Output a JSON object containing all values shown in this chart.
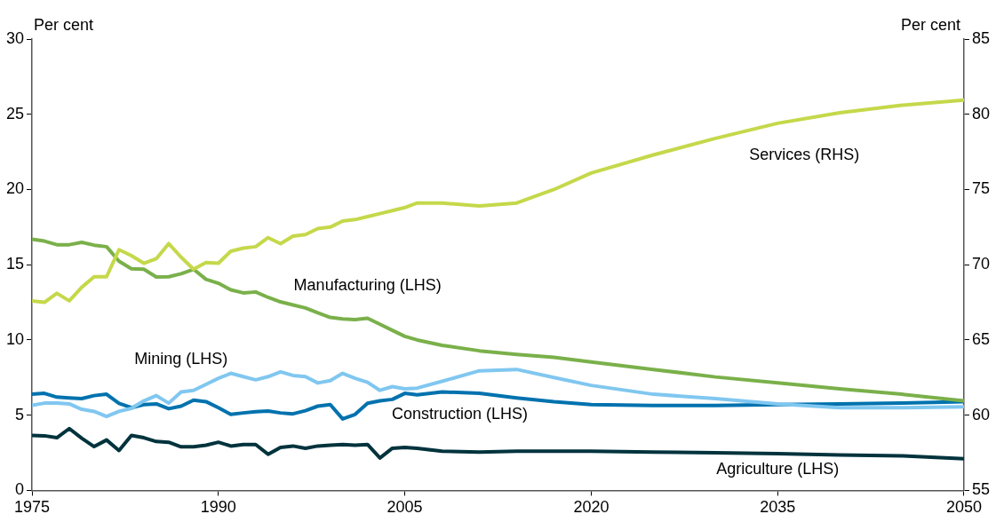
{
  "chart_data": {
    "type": "line",
    "ylabel": "Per cent",
    "y2label": "Per cent",
    "x": [
      1975,
      1976,
      1977,
      1978,
      1979,
      1980,
      1981,
      1982,
      1983,
      1984,
      1985,
      1986,
      1987,
      1988,
      1989,
      1990,
      1991,
      1992,
      1993,
      1994,
      1995,
      1996,
      1997,
      1998,
      1999,
      2000,
      2001,
      2002,
      2003,
      2004,
      2005,
      2006,
      2008,
      2011,
      2014,
      2017,
      2020,
      2025,
      2030,
      2035,
      2040,
      2045,
      2050
    ],
    "xlim": [
      1975,
      2050
    ],
    "xticks": [
      1975,
      1990,
      2005,
      2020,
      2035,
      2050
    ],
    "ylim": [
      0,
      30
    ],
    "yticks": [
      0,
      5,
      10,
      15,
      20,
      25,
      30
    ],
    "y2lim": [
      55,
      85
    ],
    "y2ticks": [
      55,
      60,
      65,
      70,
      75,
      80,
      85
    ],
    "grid": false,
    "legend": false,
    "line_style": "solid",
    "marker": "none",
    "series": [
      {
        "name": "Services (RHS)",
        "axis": "y2",
        "color": "#c5d84a",
        "values": [
          67.6,
          67.5,
          68.1,
          67.6,
          68.5,
          69.2,
          69.2,
          71.0,
          70.6,
          70.1,
          70.4,
          71.4,
          70.5,
          69.7,
          70.15,
          70.1,
          70.9,
          71.1,
          71.2,
          71.8,
          71.4,
          71.9,
          72.0,
          72.4,
          72.5,
          72.9,
          73.0,
          73.2,
          73.4,
          73.6,
          73.8,
          74.1,
          74.1,
          73.9,
          74.1,
          75.0,
          76.1,
          77.3,
          78.4,
          79.4,
          80.1,
          80.6,
          80.95
        ]
      },
      {
        "name": "Manufacturing (LHS)",
        "color": "#7ab04a",
        "values": [
          16.7,
          16.57,
          16.33,
          16.33,
          16.49,
          16.3,
          16.2,
          15.23,
          14.73,
          14.7,
          14.19,
          14.2,
          14.4,
          14.7,
          14.03,
          13.77,
          13.33,
          13.13,
          13.19,
          12.83,
          12.53,
          12.33,
          12.13,
          11.8,
          11.5,
          11.4,
          11.35,
          11.44,
          11.04,
          10.64,
          10.24,
          10.0,
          9.64,
          9.28,
          9.04,
          8.84,
          8.54,
          8.04,
          7.54,
          7.15,
          6.75,
          6.39,
          5.95
        ]
      },
      {
        "name": "Mining (LHS)",
        "color": "#80c7f0",
        "values": [
          5.65,
          5.8,
          5.8,
          5.75,
          5.39,
          5.25,
          4.91,
          5.25,
          5.45,
          5.95,
          6.3,
          5.8,
          6.55,
          6.65,
          7.05,
          7.45,
          7.78,
          7.56,
          7.35,
          7.56,
          7.88,
          7.64,
          7.56,
          7.14,
          7.3,
          7.78,
          7.45,
          7.19,
          6.65,
          6.9,
          6.75,
          6.8,
          7.25,
          7.95,
          8.04,
          7.5,
          6.98,
          6.39,
          6.1,
          5.75,
          5.5,
          5.5,
          5.55
        ]
      },
      {
        "name": "Construction (LHS)",
        "color": "#0072ae",
        "values": [
          6.39,
          6.45,
          6.2,
          6.15,
          6.1,
          6.3,
          6.39,
          5.79,
          5.5,
          5.7,
          5.75,
          5.43,
          5.6,
          6.0,
          5.9,
          5.5,
          5.05,
          5.15,
          5.23,
          5.27,
          5.15,
          5.09,
          5.3,
          5.6,
          5.7,
          4.75,
          5.05,
          5.79,
          5.95,
          6.05,
          6.45,
          6.35,
          6.55,
          6.45,
          6.15,
          5.9,
          5.71,
          5.65,
          5.65,
          5.7,
          5.75,
          5.8,
          5.9
        ]
      },
      {
        "name": "Agriculture (LHS)",
        "color": "#00333d",
        "values": [
          3.65,
          3.63,
          3.5,
          4.11,
          3.47,
          2.91,
          3.35,
          2.65,
          3.65,
          3.5,
          3.25,
          3.2,
          2.9,
          2.9,
          3.0,
          3.2,
          2.95,
          3.05,
          3.05,
          2.4,
          2.85,
          2.95,
          2.8,
          2.95,
          3.0,
          3.05,
          3.0,
          3.05,
          2.16,
          2.8,
          2.85,
          2.8,
          2.6,
          2.55,
          2.6,
          2.6,
          2.6,
          2.55,
          2.5,
          2.45,
          2.35,
          2.3,
          2.1
        ]
      }
    ]
  }
}
